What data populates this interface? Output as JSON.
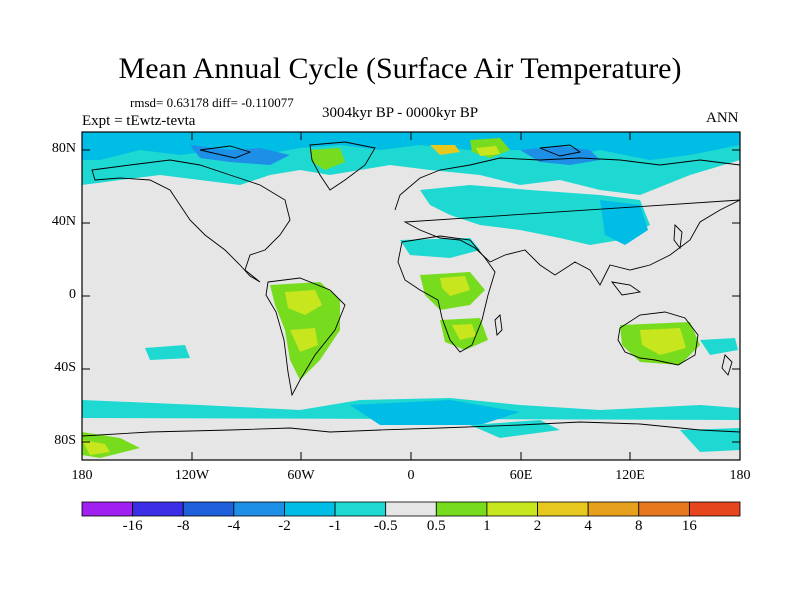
{
  "title": "Mean Annual Cycle (Surface Air Temperature)",
  "stats": "rmsd= 0.63178 diff= -0.110077",
  "experiment": "Expt = tEwtz-tevta",
  "period": "3004kyr BP - 0000kyr BP",
  "season": "ANN",
  "axes": {
    "lat_ticks": [
      "80N",
      "40N",
      "0",
      "40S",
      "80S"
    ],
    "lon_ticks": [
      "180",
      "120W",
      "60W",
      "0",
      "60E",
      "120E",
      "180"
    ]
  },
  "colorbar": {
    "labels": [
      "-16",
      "-8",
      "-4",
      "-2",
      "-1",
      "-0.5",
      "0.5",
      "1",
      "2",
      "4",
      "8",
      "16"
    ],
    "colors": [
      "#a020f0",
      "#3c2ee6",
      "#1e5fdc",
      "#1e8fe6",
      "#00bde6",
      "#1ed8d2",
      "#e6e6e6",
      "#78dc1e",
      "#c8e61e",
      "#e6c81e",
      "#e6a01e",
      "#e6781e",
      "#e6461e"
    ]
  },
  "colors": {
    "land_outline": "#000000",
    "background_field": "#e6e6e6"
  }
}
